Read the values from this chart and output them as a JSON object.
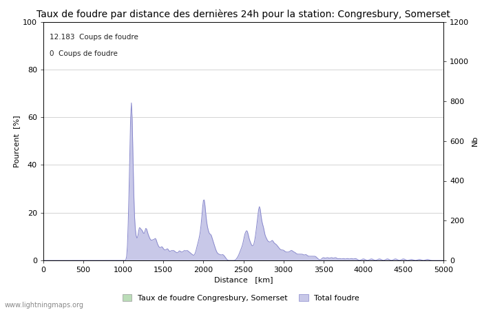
{
  "title": "Taux de foudre par distance des dernières 24h pour la station: Congresbury, Somerset",
  "xlabel": "Distance   [km]",
  "ylabel_left": "Pourcent  [%]",
  "ylabel_right": "Nb",
  "annotation_line1": "12.183  Coups de foudre",
  "annotation_line2": "0  Coups de foudre",
  "xlim": [
    0,
    5000
  ],
  "ylim_left": [
    0,
    100
  ],
  "ylim_right": [
    0,
    1200
  ],
  "xticks": [
    0,
    500,
    1000,
    1500,
    2000,
    2500,
    3000,
    3500,
    4000,
    4500,
    5000
  ],
  "yticks_left": [
    0,
    20,
    40,
    60,
    80,
    100
  ],
  "yticks_right": [
    0,
    200,
    400,
    600,
    800,
    1000,
    1200
  ],
  "legend_label_green": "Taux de foudre Congresbury, Somerset",
  "legend_label_blue": "Total foudre",
  "color_blue_line": "#8888cc",
  "color_blue_fill": "#c8c8e8",
  "color_green_fill": "#bbddb8",
  "watermark": "www.lightningmaps.org",
  "background_color": "#ffffff",
  "title_fontsize": 10,
  "axis_fontsize": 8,
  "tick_fontsize": 8
}
